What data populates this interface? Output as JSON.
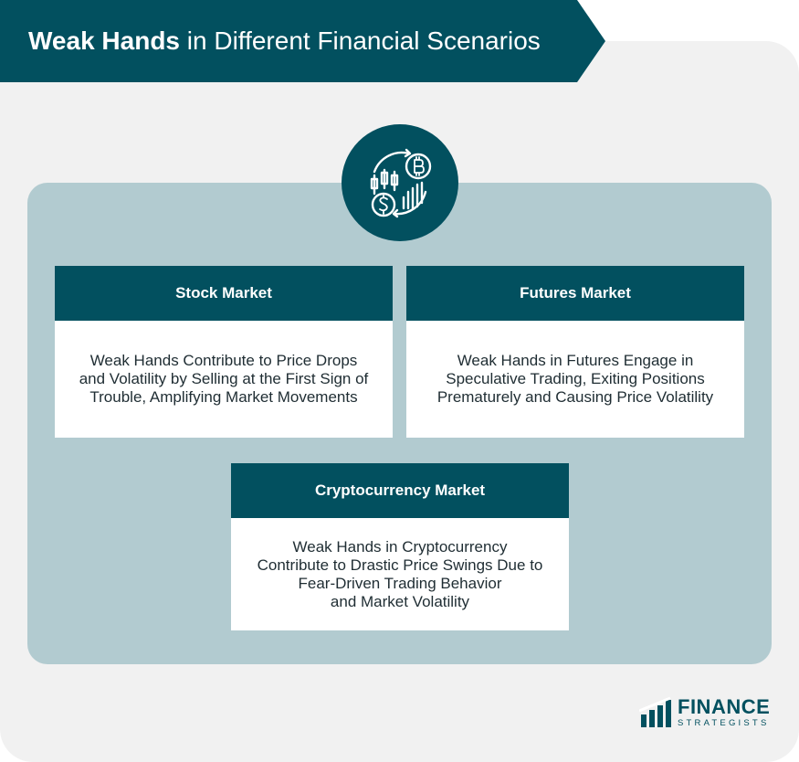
{
  "header": {
    "title_bold": "Weak Hands",
    "title_rest": " in Different Financial Scenarios"
  },
  "icon": {
    "name": "finance-chart-currency-icon"
  },
  "cards": [
    {
      "heading": "Stock Market",
      "body": "Weak Hands Contribute to Price Drops\nand Volatility by Selling at the First Sign of\nTrouble, Amplifying Market Movements"
    },
    {
      "heading": "Futures Market",
      "body": "Weak Hands in Futures Engage in\nSpeculative Trading, Exiting Positions\nPrematurely and Causing Price Volatility"
    },
    {
      "heading": "Cryptocurrency Market",
      "body": "Weak Hands in Cryptocurrency\nContribute to Drastic Price Swings Due to\nFear-Driven Trading Behavior\nand Market Volatility"
    }
  ],
  "logo": {
    "main": "FINANCE",
    "sub": "STRATEGISTS"
  },
  "colors": {
    "primary": "#02505f",
    "panel": "#b2cbd0",
    "background": "#f1f1f1"
  }
}
